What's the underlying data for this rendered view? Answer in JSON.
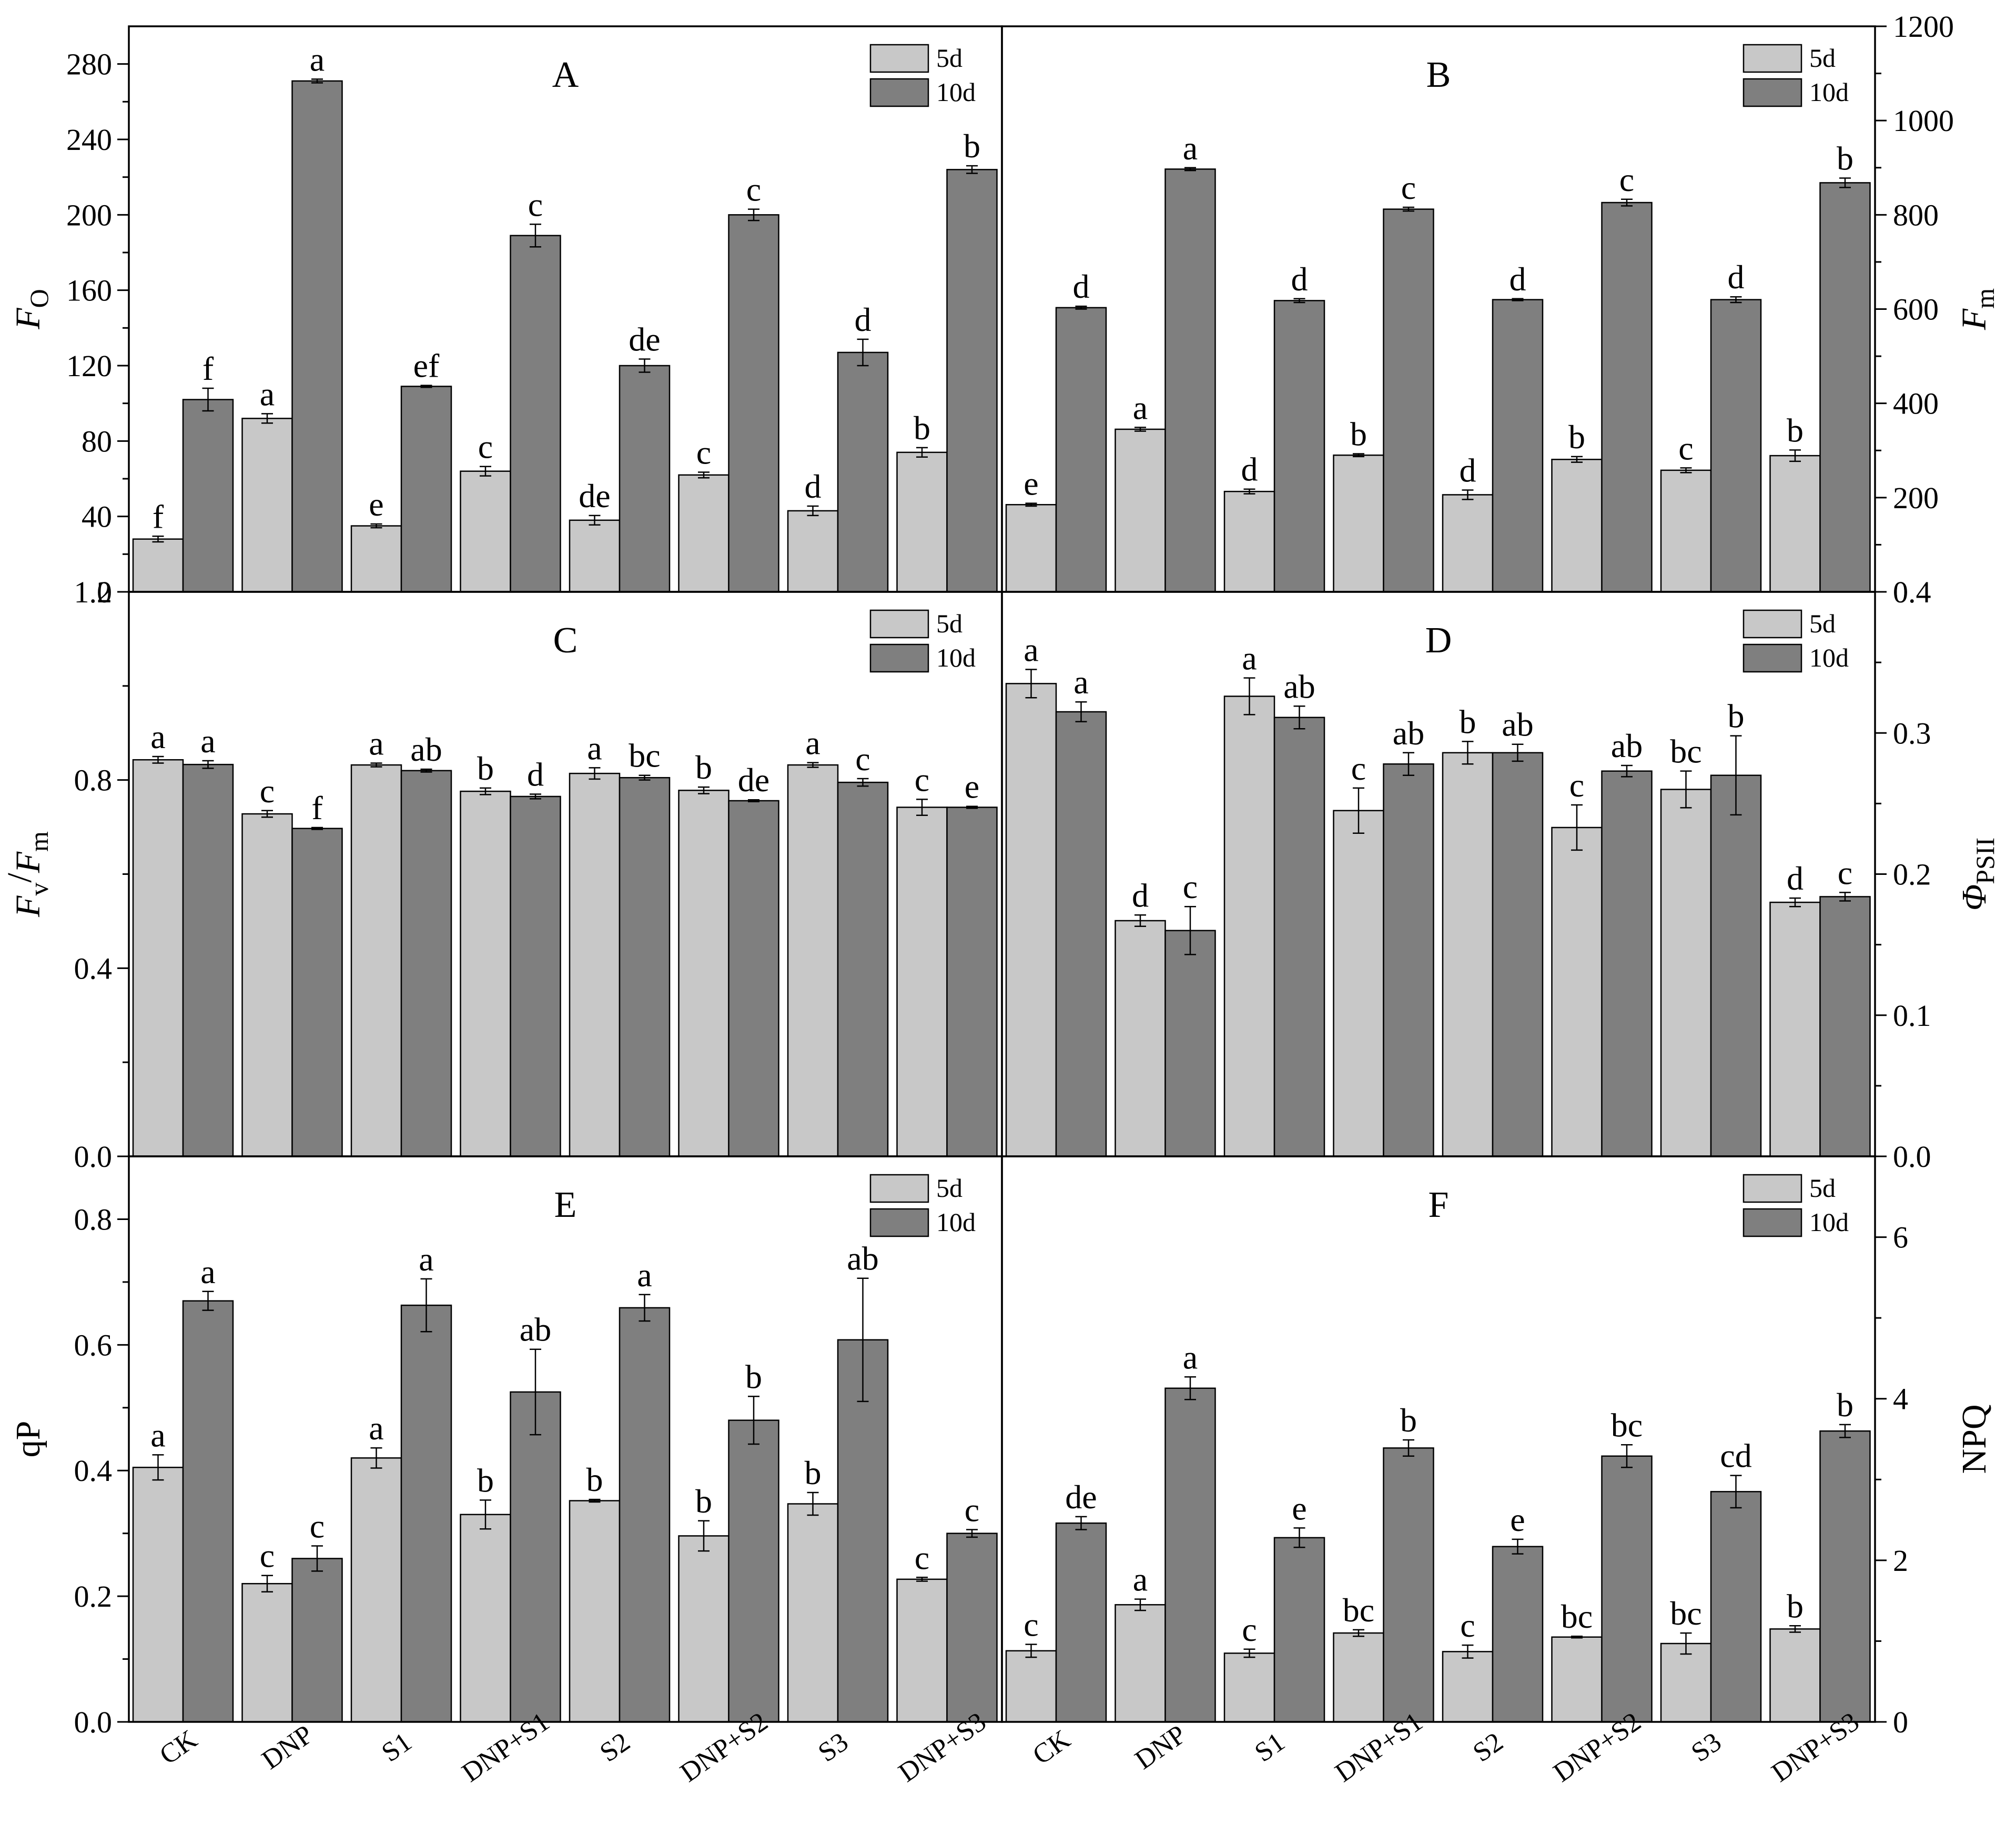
{
  "categories": [
    "CK",
    "DNP",
    "S1",
    "DNP+S1",
    "S2",
    "DNP+S2",
    "S3",
    "DNP+S3"
  ],
  "legend": [
    "5d",
    "10d"
  ],
  "colors": {
    "series_5d": "#c8c8c8",
    "series_10d": "#7f7f7f",
    "axis": "#000000"
  },
  "chart_data": [
    {
      "panel": "A",
      "type": "bar",
      "title": "A",
      "ylabel": "Fo",
      "ylabel_main": "F",
      "ylabel_sub": "O",
      "ylim": [
        0,
        300
      ],
      "ticks": [
        0,
        40,
        80,
        120,
        160,
        200,
        240,
        280
      ],
      "tick_labels": [
        "0",
        "40",
        "80",
        "120",
        "160",
        "200",
        "240",
        "280"
      ],
      "axis_side": "left",
      "legend_position": "top-right",
      "series": [
        {
          "name": "5d",
          "values": [
            28,
            92,
            35,
            64,
            38,
            62,
            43,
            74
          ],
          "errors": [
            1.5,
            2.5,
            1.0,
            2.5,
            2.5,
            1.5,
            2.5,
            2.5
          ],
          "letters": [
            "f",
            "a",
            "e",
            "c",
            "de",
            "c",
            "d",
            "b"
          ]
        },
        {
          "name": "10d",
          "values": [
            102,
            271,
            109,
            189,
            120,
            200,
            127,
            224
          ],
          "errors": [
            6,
            1,
            0.5,
            6,
            3.5,
            3,
            7,
            2
          ],
          "letters": [
            "f",
            "a",
            "ef",
            "c",
            "de",
            "c",
            "d",
            "b"
          ]
        }
      ]
    },
    {
      "panel": "B",
      "type": "bar",
      "title": "B",
      "ylabel": "Fm",
      "ylabel_main": "F",
      "ylabel_sub": "m",
      "ylim": [
        0,
        1200
      ],
      "ticks": [
        0,
        200,
        400,
        600,
        800,
        1000,
        1200
      ],
      "tick_labels": [
        "0",
        "200",
        "400",
        "600",
        "800",
        "1000",
        "1200"
      ],
      "axis_side": "right",
      "legend_position": "top-right",
      "series": [
        {
          "name": "5d",
          "values": [
            185,
            345,
            213,
            290,
            206,
            281,
            258,
            289
          ],
          "errors": [
            3,
            4,
            5,
            3,
            10,
            6,
            5,
            12
          ],
          "letters": [
            "e",
            "a",
            "d",
            "b",
            "d",
            "b",
            "c",
            "b"
          ]
        },
        {
          "name": "10d",
          "values": [
            603,
            897,
            618,
            812,
            620,
            826,
            620,
            868
          ],
          "errors": [
            3,
            3,
            4,
            4,
            2,
            7,
            6,
            10
          ],
          "letters": [
            "d",
            "a",
            "d",
            "c",
            "d",
            "c",
            "d",
            "b"
          ]
        }
      ]
    },
    {
      "panel": "C",
      "type": "bar",
      "title": "C",
      "ylabel": "Fv/Fm",
      "ylabel_main": "F",
      "ylabel_sub": "v",
      "ylabel_sep": "/",
      "ylabel_main2": "F",
      "ylabel_sub2": "m",
      "ylim": [
        0,
        1.2
      ],
      "ticks": [
        0.0,
        0.4,
        0.8,
        1.2
      ],
      "tick_labels": [
        "0.0",
        "0.4",
        "0.8",
        "1.2"
      ],
      "axis_side": "left",
      "legend_position": "top-right",
      "series": [
        {
          "name": "5d",
          "values": [
            0.843,
            0.728,
            0.832,
            0.776,
            0.814,
            0.778,
            0.832,
            0.742
          ],
          "errors": [
            0.007,
            0.007,
            0.004,
            0.007,
            0.012,
            0.007,
            0.005,
            0.017
          ],
          "letters": [
            "a",
            "c",
            "a",
            "b",
            "a",
            "b",
            "a",
            "c"
          ]
        },
        {
          "name": "10d",
          "values": [
            0.833,
            0.697,
            0.82,
            0.765,
            0.805,
            0.756,
            0.795,
            0.742
          ],
          "errors": [
            0.008,
            0.002,
            0.003,
            0.005,
            0.005,
            0.002,
            0.008,
            0.002
          ],
          "letters": [
            "a",
            "f",
            "ab",
            "d",
            "bc",
            "de",
            "c",
            "e"
          ]
        }
      ]
    },
    {
      "panel": "D",
      "type": "bar",
      "title": "D",
      "ylabel": "ΦPSII",
      "ylabel_main": "Φ",
      "ylabel_sub": "PSII",
      "ylim": [
        0,
        0.4
      ],
      "ticks": [
        0.0,
        0.1,
        0.2,
        0.3,
        0.4
      ],
      "tick_labels": [
        "0.0",
        "0.1",
        "0.2",
        "0.3",
        "0.4"
      ],
      "axis_side": "right",
      "legend_position": "top-right",
      "series": [
        {
          "name": "5d",
          "values": [
            0.335,
            0.167,
            0.326,
            0.245,
            0.286,
            0.233,
            0.26,
            0.18
          ],
          "errors": [
            0.01,
            0.004,
            0.013,
            0.016,
            0.008,
            0.016,
            0.013,
            0.003
          ],
          "letters": [
            "a",
            "d",
            "a",
            "c",
            "b",
            "c",
            "bc",
            "d"
          ]
        },
        {
          "name": "10d",
          "values": [
            0.315,
            0.16,
            0.311,
            0.278,
            0.286,
            0.273,
            0.27,
            0.184
          ],
          "errors": [
            0.007,
            0.017,
            0.008,
            0.008,
            0.006,
            0.004,
            0.028,
            0.003
          ],
          "letters": [
            "a",
            "c",
            "ab",
            "ab",
            "ab",
            "ab",
            "b",
            "c"
          ]
        }
      ]
    },
    {
      "panel": "E",
      "type": "bar",
      "title": "E",
      "ylabel": "qP",
      "ylim": [
        0,
        0.9
      ],
      "ticks": [
        0.0,
        0.2,
        0.4,
        0.6,
        0.8
      ],
      "tick_labels": [
        "0.0",
        "0.2",
        "0.4",
        "0.6",
        "0.8"
      ],
      "axis_side": "left",
      "legend_position": "top-right",
      "series": [
        {
          "name": "5d",
          "values": [
            0.405,
            0.22,
            0.42,
            0.33,
            0.352,
            0.296,
            0.347,
            0.227
          ],
          "errors": [
            0.02,
            0.013,
            0.016,
            0.023,
            0.002,
            0.024,
            0.018,
            0.003
          ],
          "letters": [
            "a",
            "c",
            "a",
            "b",
            "b",
            "b",
            "b",
            "c"
          ]
        },
        {
          "name": "10d",
          "values": [
            0.67,
            0.26,
            0.663,
            0.525,
            0.659,
            0.48,
            0.608,
            0.3
          ],
          "errors": [
            0.015,
            0.02,
            0.042,
            0.068,
            0.021,
            0.038,
            0.098,
            0.006
          ],
          "letters": [
            "a",
            "c",
            "a",
            "ab",
            "a",
            "b",
            "ab",
            "c"
          ]
        }
      ]
    },
    {
      "panel": "F",
      "type": "bar",
      "title": "F",
      "ylabel": "NPQ",
      "ylim": [
        0,
        7
      ],
      "ticks": [
        0,
        2,
        4,
        6
      ],
      "tick_labels": [
        "0",
        "2",
        "4",
        "6"
      ],
      "axis_side": "right",
      "legend_position": "top-right",
      "series": [
        {
          "name": "5d",
          "values": [
            0.88,
            1.45,
            0.85,
            1.1,
            0.87,
            1.05,
            0.97,
            1.15
          ],
          "errors": [
            0.08,
            0.07,
            0.05,
            0.04,
            0.08,
            0.01,
            0.13,
            0.04
          ],
          "letters": [
            "c",
            "a",
            "c",
            "bc",
            "c",
            "bc",
            "bc",
            "b"
          ]
        },
        {
          "name": "10d",
          "values": [
            2.46,
            4.13,
            2.28,
            3.39,
            2.17,
            3.29,
            2.85,
            3.6
          ],
          "errors": [
            0.08,
            0.14,
            0.12,
            0.1,
            0.09,
            0.14,
            0.2,
            0.08
          ],
          "letters": [
            "de",
            "a",
            "e",
            "b",
            "e",
            "bc",
            "cd",
            "b"
          ]
        }
      ]
    }
  ]
}
